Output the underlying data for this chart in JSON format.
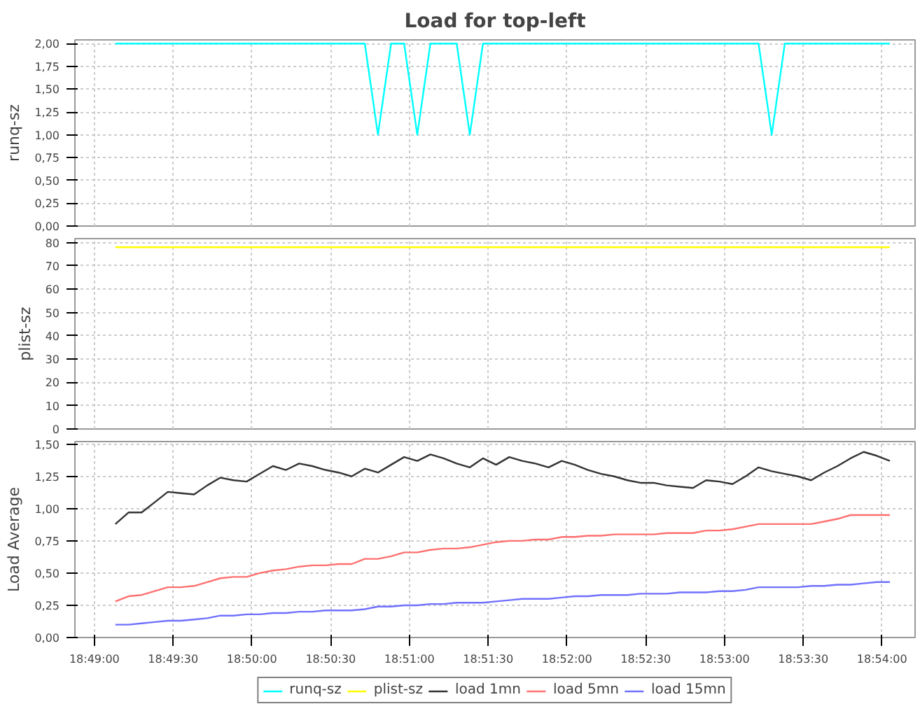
{
  "chart_data": [
    {
      "type": "line",
      "title": "Load for top-left",
      "ylabel": "runq-sz",
      "grid": true,
      "legend": "bottom",
      "tick_labels": "y",
      "x": [
        18.81889,
        18.82028,
        18.82167,
        18.82306,
        18.82444,
        18.82583,
        18.82722,
        18.82861,
        18.83,
        18.83139,
        18.83278,
        18.83417,
        18.83556,
        18.83694,
        18.83833,
        18.83972,
        18.84111,
        18.8425,
        18.84389,
        18.84528,
        18.84667,
        18.84806,
        18.84944,
        18.85083,
        18.85222,
        18.85361,
        18.855,
        18.85639,
        18.85778,
        18.85917,
        18.86056,
        18.86194,
        18.86333,
        18.86472,
        18.86611,
        18.8675,
        18.86889,
        18.87028,
        18.87167,
        18.87306,
        18.87444,
        18.87583,
        18.87722,
        18.87861,
        18.88,
        18.88139,
        18.88278,
        18.88417,
        18.88556,
        18.88694,
        18.88833,
        18.88972,
        18.89111,
        18.8925,
        18.89389,
        18.89528,
        18.89667,
        18.89806,
        18.89944,
        18.90083
      ],
      "xlim": [
        18.81461,
        18.9035
      ],
      "xticks": [
        {
          "value": 18.81667,
          "label": null
        },
        {
          "value": 18.825,
          "label": null
        },
        {
          "value": 18.83333,
          "label": null
        },
        {
          "value": 18.84167,
          "label": null
        },
        {
          "value": 18.85,
          "label": null
        },
        {
          "value": 18.85833,
          "label": null
        },
        {
          "value": 18.86667,
          "label": null
        },
        {
          "value": 18.875,
          "label": null
        },
        {
          "value": 18.88333,
          "label": null
        },
        {
          "value": 18.89167,
          "label": null
        },
        {
          "value": 18.9,
          "label": null
        }
      ],
      "ylim": [
        0,
        2.04
      ],
      "yticks": [
        {
          "value": 0,
          "label": "0,00"
        },
        {
          "value": 0.25,
          "label": "0,25"
        },
        {
          "value": 0.5,
          "label": "0,50"
        },
        {
          "value": 0.75,
          "label": "0,75"
        },
        {
          "value": 1,
          "label": "1,00"
        },
        {
          "value": 1.25,
          "label": "1,25"
        },
        {
          "value": 1.5,
          "label": "1,50"
        },
        {
          "value": 1.75,
          "label": "1,75"
        },
        {
          "value": 2,
          "label": "2,00"
        }
      ],
      "series": [
        {
          "name": "runq-sz",
          "color": "#00ffff",
          "values": [
            2,
            2,
            2,
            2,
            2,
            2,
            2,
            2,
            2,
            2,
            2,
            2,
            2,
            2,
            2,
            2,
            2,
            2,
            2,
            2,
            1,
            2,
            2,
            1,
            2,
            2,
            2,
            1,
            2,
            2,
            2,
            2,
            2,
            2,
            2,
            2,
            2,
            2,
            2,
            2,
            2,
            2,
            2,
            2,
            2,
            2,
            2,
            2,
            2,
            2,
            1,
            2,
            2,
            2,
            2,
            2,
            2,
            2,
            2,
            2
          ]
        }
      ]
    },
    {
      "type": "line",
      "ylabel": "plist-sz",
      "grid": true,
      "legend": "bottom",
      "tick_labels": "y",
      "x": [
        18.81889,
        18.82028,
        18.82167,
        18.82306,
        18.82444,
        18.82583,
        18.82722,
        18.82861,
        18.83,
        18.83139,
        18.83278,
        18.83417,
        18.83556,
        18.83694,
        18.83833,
        18.83972,
        18.84111,
        18.8425,
        18.84389,
        18.84528,
        18.84667,
        18.84806,
        18.84944,
        18.85083,
        18.85222,
        18.85361,
        18.855,
        18.85639,
        18.85778,
        18.85917,
        18.86056,
        18.86194,
        18.86333,
        18.86472,
        18.86611,
        18.8675,
        18.86889,
        18.87028,
        18.87167,
        18.87306,
        18.87444,
        18.87583,
        18.87722,
        18.87861,
        18.88,
        18.88139,
        18.88278,
        18.88417,
        18.88556,
        18.88694,
        18.88833,
        18.88972,
        18.89111,
        18.8925,
        18.89389,
        18.89528,
        18.89667,
        18.89806,
        18.89944,
        18.90083
      ],
      "xlim": [
        18.81461,
        18.9035
      ],
      "xticks": [
        {
          "value": 18.81667,
          "label": null
        },
        {
          "value": 18.825,
          "label": null
        },
        {
          "value": 18.83333,
          "label": null
        },
        {
          "value": 18.84167,
          "label": null
        },
        {
          "value": 18.85,
          "label": null
        },
        {
          "value": 18.85833,
          "label": null
        },
        {
          "value": 18.86667,
          "label": null
        },
        {
          "value": 18.875,
          "label": null
        },
        {
          "value": 18.88333,
          "label": null
        },
        {
          "value": 18.89167,
          "label": null
        },
        {
          "value": 18.9,
          "label": null
        }
      ],
      "ylim": [
        0,
        81.7
      ],
      "yticks": [
        0,
        10,
        20,
        30,
        40,
        50,
        60,
        70,
        80
      ],
      "series": [
        {
          "name": "plist-sz",
          "color": "#ffff00",
          "values": [
            78,
            78,
            78,
            78,
            78,
            78,
            78,
            78,
            78,
            78,
            78,
            78,
            78,
            78,
            78,
            78,
            78,
            78,
            78,
            78,
            78,
            78,
            78,
            78,
            78,
            78,
            78,
            78,
            78,
            78,
            78,
            78,
            78,
            78,
            78,
            78,
            78,
            78,
            78,
            78,
            78,
            78,
            78,
            78,
            78,
            78,
            78,
            78,
            78,
            78,
            78,
            78,
            78,
            78,
            78,
            78,
            78,
            78,
            78,
            78
          ]
        }
      ]
    },
    {
      "type": "line",
      "ylabel": "Load Average",
      "grid": true,
      "legend": "bottom",
      "x": [
        18.81889,
        18.82028,
        18.82167,
        18.82306,
        18.82444,
        18.82583,
        18.82722,
        18.82861,
        18.83,
        18.83139,
        18.83278,
        18.83417,
        18.83556,
        18.83694,
        18.83833,
        18.83972,
        18.84111,
        18.8425,
        18.84389,
        18.84528,
        18.84667,
        18.84806,
        18.84944,
        18.85083,
        18.85222,
        18.85361,
        18.855,
        18.85639,
        18.85778,
        18.85917,
        18.86056,
        18.86194,
        18.86333,
        18.86472,
        18.86611,
        18.8675,
        18.86889,
        18.87028,
        18.87167,
        18.87306,
        18.87444,
        18.87583,
        18.87722,
        18.87861,
        18.88,
        18.88139,
        18.88278,
        18.88417,
        18.88556,
        18.88694,
        18.88833,
        18.88972,
        18.89111,
        18.8925,
        18.89389,
        18.89528,
        18.89667,
        18.89806,
        18.89944,
        18.90083
      ],
      "xlim": [
        18.81461,
        18.9035
      ],
      "xticks": [
        {
          "value": 18.81667,
          "label": "18:49:00"
        },
        {
          "value": 18.825,
          "label": "18:49:30"
        },
        {
          "value": 18.83333,
          "label": "18:50:00"
        },
        {
          "value": 18.84167,
          "label": "18:50:30"
        },
        {
          "value": 18.85,
          "label": "18:51:00"
        },
        {
          "value": 18.85833,
          "label": "18:51:30"
        },
        {
          "value": 18.86667,
          "label": "18:52:00"
        },
        {
          "value": 18.875,
          "label": "18:52:30"
        },
        {
          "value": 18.88333,
          "label": "18:53:00"
        },
        {
          "value": 18.89167,
          "label": "18:53:30"
        },
        {
          "value": 18.9,
          "label": "18:54:00"
        }
      ],
      "ylim": [
        0,
        1.52
      ],
      "yticks": [
        {
          "value": 0,
          "label": "0,00"
        },
        {
          "value": 0.25,
          "label": "0,25"
        },
        {
          "value": 0.5,
          "label": "0,50"
        },
        {
          "value": 0.75,
          "label": "0,75"
        },
        {
          "value": 1,
          "label": "1,00"
        },
        {
          "value": 1.25,
          "label": "1,25"
        },
        {
          "value": 1.5,
          "label": "1,50"
        }
      ],
      "series": [
        {
          "name": "load 1mn",
          "color": "#333333",
          "values": [
            0.88,
            0.97,
            0.97,
            1.05,
            1.13,
            1.12,
            1.11,
            1.18,
            1.24,
            1.22,
            1.21,
            1.27,
            1.33,
            1.3,
            1.35,
            1.33,
            1.3,
            1.28,
            1.25,
            1.31,
            1.28,
            1.34,
            1.4,
            1.37,
            1.42,
            1.39,
            1.35,
            1.32,
            1.39,
            1.34,
            1.4,
            1.37,
            1.35,
            1.32,
            1.37,
            1.34,
            1.3,
            1.27,
            1.25,
            1.22,
            1.2,
            1.2,
            1.18,
            1.17,
            1.16,
            1.22,
            1.21,
            1.19,
            1.25,
            1.32,
            1.29,
            1.27,
            1.25,
            1.22,
            1.28,
            1.33,
            1.39,
            1.44,
            1.41,
            1.37
          ]
        },
        {
          "name": "load 5mn",
          "color": "#ff7070",
          "values": [
            0.28,
            0.32,
            0.33,
            0.36,
            0.39,
            0.39,
            0.4,
            0.43,
            0.46,
            0.47,
            0.47,
            0.5,
            0.52,
            0.53,
            0.55,
            0.56,
            0.56,
            0.57,
            0.57,
            0.61,
            0.61,
            0.63,
            0.66,
            0.66,
            0.68,
            0.69,
            0.69,
            0.7,
            0.72,
            0.74,
            0.75,
            0.75,
            0.76,
            0.76,
            0.78,
            0.78,
            0.79,
            0.79,
            0.8,
            0.8,
            0.8,
            0.8,
            0.81,
            0.81,
            0.81,
            0.83,
            0.83,
            0.84,
            0.86,
            0.88,
            0.88,
            0.88,
            0.88,
            0.88,
            0.9,
            0.92,
            0.95,
            0.95,
            0.95,
            0.95
          ]
        },
        {
          "name": "load 15mn",
          "color": "#7070ff",
          "values": [
            0.1,
            0.1,
            0.11,
            0.12,
            0.13,
            0.13,
            0.14,
            0.15,
            0.17,
            0.17,
            0.18,
            0.18,
            0.19,
            0.19,
            0.2,
            0.2,
            0.21,
            0.21,
            0.21,
            0.22,
            0.24,
            0.24,
            0.25,
            0.25,
            0.26,
            0.26,
            0.27,
            0.27,
            0.27,
            0.28,
            0.29,
            0.3,
            0.3,
            0.3,
            0.31,
            0.32,
            0.32,
            0.33,
            0.33,
            0.33,
            0.34,
            0.34,
            0.34,
            0.35,
            0.35,
            0.35,
            0.36,
            0.36,
            0.37,
            0.39,
            0.39,
            0.39,
            0.39,
            0.4,
            0.4,
            0.41,
            0.41,
            0.42,
            0.43,
            0.43
          ]
        }
      ]
    }
  ]
}
